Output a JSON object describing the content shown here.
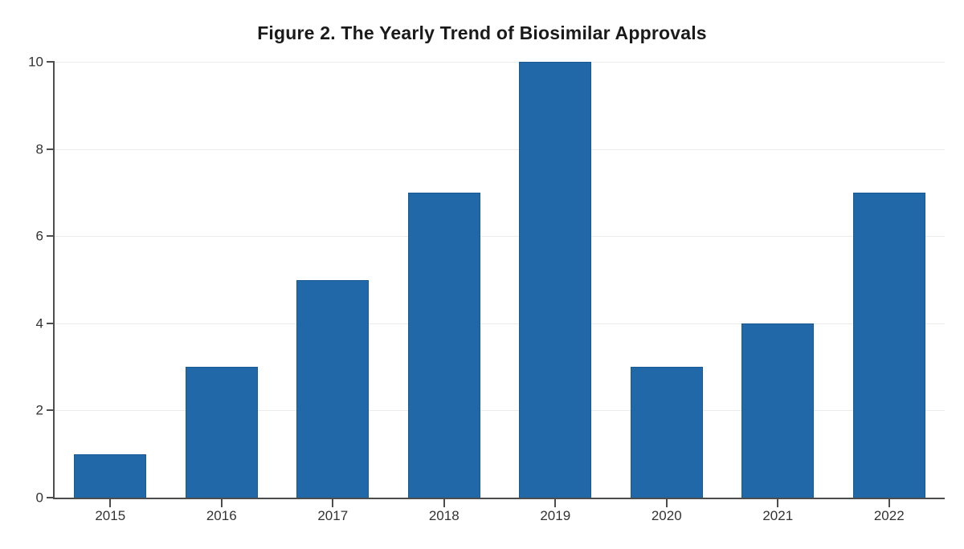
{
  "chart_data": {
    "type": "bar",
    "title": "Figure 2. The Yearly Trend of Biosimilar Approvals",
    "categories": [
      "2015",
      "2016",
      "2017",
      "2018",
      "2019",
      "2020",
      "2021",
      "2022"
    ],
    "values": [
      1,
      3,
      5,
      7,
      10,
      3,
      4,
      7
    ],
    "xlabel": "",
    "ylabel": "",
    "ylim": [
      0,
      10
    ],
    "yticks": [
      0,
      2,
      4,
      6,
      8,
      10
    ],
    "bar_width_fraction": 0.65,
    "grid": true,
    "legend": "none",
    "colors": {
      "bar_fill": "#2068a8",
      "bar_edge": "#1a5a94",
      "gridline": "#ebebeb",
      "axis_spine": "#4d4d4d",
      "tick_label": "#333333",
      "title": "#1a1a1a",
      "background": "#ffffff"
    }
  }
}
